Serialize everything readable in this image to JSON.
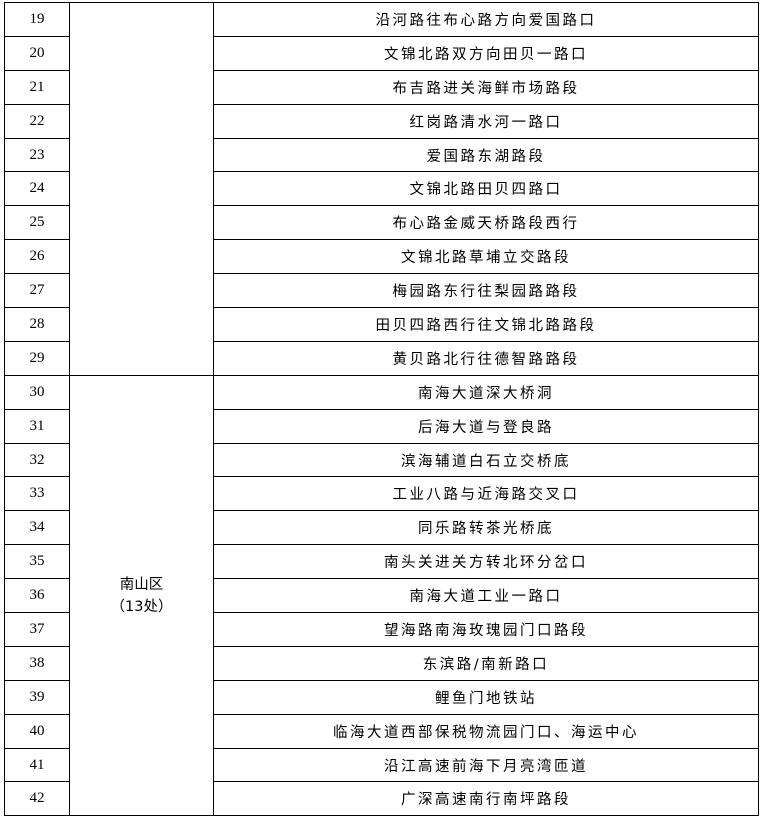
{
  "groups": [
    {
      "district": "",
      "district_count": "",
      "rows": [
        {
          "no": "19",
          "location": "沿河路往布心路方向爱国路口"
        },
        {
          "no": "20",
          "location": "文锦北路双方向田贝一路口"
        },
        {
          "no": "21",
          "location": "布吉路进关海鲜市场路段"
        },
        {
          "no": "22",
          "location": "红岗路清水河一路口"
        },
        {
          "no": "23",
          "location": "爱国路东湖路段"
        },
        {
          "no": "24",
          "location": "文锦北路田贝四路口"
        },
        {
          "no": "25",
          "location": "布心路金威天桥路段西行"
        },
        {
          "no": "26",
          "location": "文锦北路草埔立交路段"
        },
        {
          "no": "27",
          "location": "梅园路东行往梨园路路段"
        },
        {
          "no": "28",
          "location": "田贝四路西行往文锦北路路段"
        },
        {
          "no": "29",
          "location": "黄贝路北行往德智路路段"
        }
      ]
    },
    {
      "district": "南山区",
      "district_count": "（13处）",
      "rows": [
        {
          "no": "30",
          "location": "南海大道深大桥洞"
        },
        {
          "no": "31",
          "location": "后海大道与登良路"
        },
        {
          "no": "32",
          "location": "滨海辅道白石立交桥底"
        },
        {
          "no": "33",
          "location": "工业八路与近海路交叉口"
        },
        {
          "no": "34",
          "location": "同乐路转茶光桥底"
        },
        {
          "no": "35",
          "location": "南头关进关方转北环分岔口"
        },
        {
          "no": "36",
          "location": "南海大道工业一路口"
        },
        {
          "no": "37",
          "location": "望海路南海玫瑰园门口路段"
        },
        {
          "no": "38",
          "location": "东滨路/南新路口"
        },
        {
          "no": "39",
          "location": "鲤鱼门地铁站"
        },
        {
          "no": "40",
          "location": "临海大道西部保税物流园门口、海运中心"
        },
        {
          "no": "41",
          "location": "沿江高速前海下月亮湾匝道"
        },
        {
          "no": "42",
          "location": "广深高速南行南坪路段"
        }
      ]
    }
  ]
}
